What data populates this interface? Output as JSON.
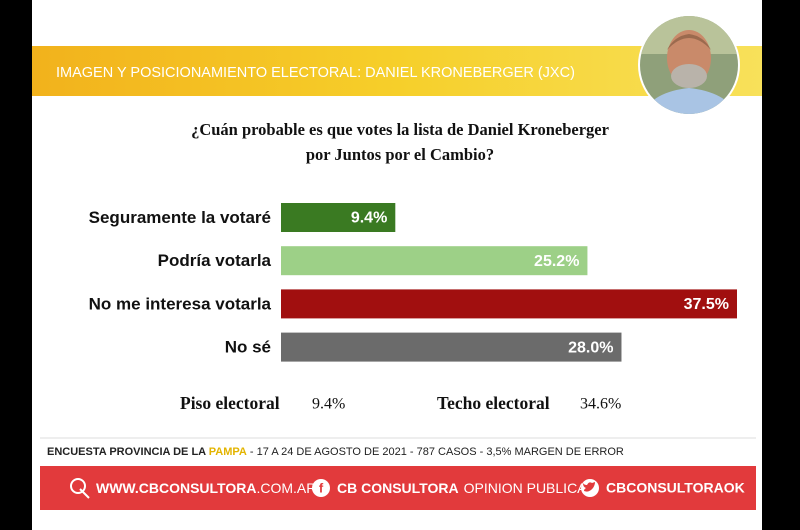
{
  "header": {
    "title": "IMAGEN Y POSICIONAMIENTO ELECTORAL: DANIEL KRONEBERGER (JXC)"
  },
  "chart_data": {
    "type": "bar",
    "orientation": "horizontal",
    "title_lines": [
      "¿Cuán probable es que votes la lista de Daniel Kroneberger",
      "por Juntos por el Cambio?"
    ],
    "categories": [
      "Seguramente la votaré",
      "Podría votarla",
      "No me interesa votarla",
      "No sé"
    ],
    "values": [
      9.4,
      25.2,
      37.5,
      28.0
    ],
    "value_labels": [
      "9.4%",
      "25.2%",
      "37.5%",
      "28.0%"
    ],
    "colors": [
      "#3a7a22",
      "#9dd087",
      "#a10f0f",
      "#6b6b6b"
    ]
  },
  "summary": {
    "floor": {
      "label": "Piso electoral",
      "value": "9.4%"
    },
    "ceiling": {
      "label": "Techo electoral",
      "value": "34.6%"
    }
  },
  "footer": {
    "survey": [
      "ENCUESTA PROVINCIA DE LA ",
      "PAMPA",
      " - 17 A 24 DE AGOSTO DE 2021 - 787 CASOS - 3,5% MARGEN DE ERROR"
    ],
    "web": [
      "WWW.CBCONSULTORA",
      ".COM.AR"
    ],
    "facebook": [
      "CB CONSULTORA",
      "OPINION PUBLICA"
    ],
    "twitter": "CBCONSULTORAOK"
  }
}
